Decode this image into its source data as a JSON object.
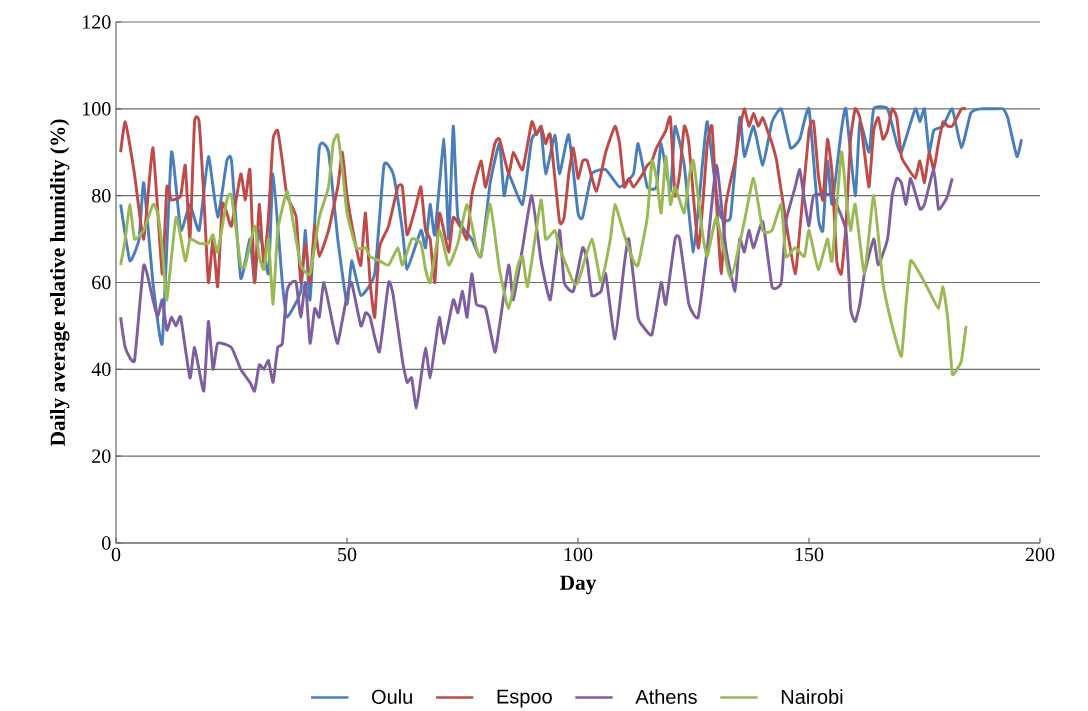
{
  "chart_data": {
    "type": "line",
    "xlabel": "Day",
    "ylabel": "Daily average relative humidity (%)",
    "xlim": [
      0,
      200
    ],
    "xticks": [
      0,
      50,
      100,
      150,
      200
    ],
    "ylim": [
      0,
      120
    ],
    "yticks": [
      0,
      20,
      40,
      60,
      80,
      100,
      120
    ],
    "grid": "y",
    "legend": "bottom",
    "marker": "none",
    "line_style": "solid",
    "series": [
      {
        "name": "Oulu",
        "color": "#4a7ebb",
        "x": [
          1,
          3,
          5,
          6,
          8,
          10,
          12,
          14,
          16,
          18,
          20,
          22,
          24,
          25,
          27,
          29,
          30,
          31,
          33,
          34,
          36,
          37,
          40,
          41,
          42,
          44,
          46,
          48,
          50,
          51,
          53,
          56,
          58,
          60,
          62,
          63,
          66,
          67,
          68,
          69,
          71,
          72,
          73,
          74,
          77,
          79,
          81,
          83,
          84,
          85,
          88,
          90,
          92,
          93,
          95,
          96,
          98,
          100,
          101,
          103,
          106,
          109,
          112,
          113,
          115,
          117,
          118,
          120,
          121,
          123,
          125,
          127,
          128,
          130,
          131,
          133,
          135,
          136,
          138,
          140,
          142,
          144,
          146,
          148,
          150,
          152,
          153,
          154,
          155,
          157,
          158,
          160,
          161,
          163,
          164,
          167,
          169,
          170,
          173,
          174,
          175,
          176,
          177,
          179,
          181,
          183,
          185,
          187,
          190,
          192,
          193,
          195,
          196
        ],
        "values": [
          78,
          65,
          70,
          83,
          60,
          46,
          90,
          72,
          78,
          72,
          89,
          75,
          88,
          88,
          61,
          70,
          60,
          72,
          62,
          85,
          60,
          52,
          58,
          72,
          56,
          91,
          90,
          70,
          55,
          65,
          57,
          62,
          87,
          85,
          72,
          63,
          72,
          68,
          78,
          71,
          93,
          70,
          96,
          75,
          70,
          66,
          83,
          92,
          80,
          85,
          78,
          93,
          95,
          85,
          94,
          85,
          94,
          76,
          75,
          85,
          86,
          82,
          85,
          92,
          82,
          82,
          92,
          81,
          96,
          87,
          67,
          88,
          97,
          80,
          75,
          75,
          98,
          89,
          96,
          87,
          97,
          100,
          91,
          93,
          100,
          75,
          72,
          88,
          78,
          95,
          100,
          80,
          97,
          90,
          100,
          100,
          92,
          90,
          100,
          97,
          100,
          90,
          95,
          96,
          100,
          91,
          99,
          100,
          100,
          100,
          98,
          89,
          93
        ]
      },
      {
        "name": "Espoo",
        "color": "#be4b48",
        "x": [
          1,
          2,
          4,
          6,
          8,
          10,
          11,
          12,
          14,
          15,
          16,
          17,
          18,
          19,
          20,
          21,
          22,
          23,
          24,
          25,
          27,
          28,
          29,
          30,
          31,
          32,
          33,
          34,
          35,
          36,
          37,
          39,
          40,
          41,
          42,
          43,
          44,
          46,
          48,
          49,
          50,
          52,
          53,
          54,
          55,
          56,
          57,
          59,
          61,
          62,
          63,
          65,
          66,
          67,
          68,
          69,
          70,
          72,
          73,
          75,
          76,
          77,
          79,
          80,
          82,
          83,
          85,
          86,
          88,
          90,
          91,
          92,
          93,
          94,
          96,
          97,
          98,
          99,
          100,
          101,
          102,
          104,
          106,
          108,
          109,
          110,
          111,
          112,
          114,
          115,
          116,
          117,
          119,
          120,
          121,
          122,
          123,
          124,
          126,
          127,
          128,
          129,
          130,
          131,
          132,
          134,
          135,
          136,
          137,
          138,
          139,
          140,
          141,
          142,
          143,
          145,
          147,
          148,
          150,
          151,
          152,
          153,
          154,
          155,
          156,
          157,
          158,
          159,
          160,
          161,
          162,
          163,
          164,
          165,
          166,
          167,
          168,
          169,
          170,
          171,
          173,
          174,
          175,
          176,
          177,
          178,
          179,
          180,
          181,
          182,
          183,
          184
        ],
        "values": [
          90,
          97,
          85,
          70,
          91,
          62,
          82,
          79,
          80,
          87,
          70,
          97,
          97,
          80,
          60,
          70,
          59,
          78,
          76,
          73,
          85,
          79,
          86,
          60,
          78,
          64,
          75,
          93,
          95,
          88,
          80,
          75,
          60,
          69,
          60,
          73,
          66,
          72,
          82,
          90,
          80,
          68,
          64,
          76,
          60,
          52,
          68,
          73,
          82,
          82,
          71,
          78,
          82,
          72,
          70,
          60,
          76,
          67,
          75,
          72,
          70,
          80,
          88,
          82,
          92,
          93,
          85,
          90,
          86,
          97,
          94,
          96,
          92,
          94,
          74,
          75,
          85,
          91,
          84,
          88,
          88,
          81,
          90,
          96,
          92,
          82,
          84,
          82,
          85,
          87,
          88,
          91,
          95,
          98,
          80,
          85,
          96,
          92,
          68,
          78,
          92,
          96,
          78,
          62,
          78,
          88,
          95,
          100,
          96,
          99,
          96,
          98,
          95,
          92,
          88,
          74,
          62,
          72,
          95,
          97,
          85,
          79,
          93,
          85,
          65,
          62,
          73,
          93,
          100,
          98,
          90,
          82,
          95,
          98,
          93,
          95,
          100,
          98,
          89,
          87,
          84,
          88,
          83,
          90,
          86,
          92,
          97,
          96,
          96,
          98,
          100,
          100
        ]
      },
      {
        "name": "Athens",
        "color": "#7d5fa0",
        "x": [
          1,
          2,
          4,
          6,
          8,
          9,
          10,
          11,
          12,
          13,
          14,
          16,
          17,
          19,
          20,
          21,
          22,
          25,
          27,
          29,
          30,
          31,
          32,
          33,
          34,
          35,
          36,
          37,
          38,
          39,
          40,
          41,
          42,
          43,
          44,
          45,
          47,
          48,
          50,
          51,
          53,
          54,
          55,
          57,
          59,
          60,
          62,
          63,
          64,
          65,
          66,
          67,
          68,
          69,
          70,
          71,
          73,
          74,
          75,
          76,
          77,
          78,
          80,
          82,
          83,
          85,
          86,
          88,
          90,
          92,
          94,
          96,
          97,
          99,
          101,
          102,
          103,
          105,
          106,
          108,
          110,
          111,
          113,
          114,
          116,
          118,
          119,
          121,
          122,
          124,
          126,
          128,
          130,
          132,
          134,
          135,
          136,
          137,
          138,
          140,
          142,
          144,
          145,
          147,
          148,
          149,
          150,
          151,
          155,
          158,
          159,
          160,
          161,
          162,
          164,
          165,
          167,
          168,
          169,
          170,
          171,
          172,
          174,
          175,
          177,
          178,
          179,
          180,
          181
        ],
        "values": [
          52,
          45,
          42,
          64,
          56,
          52,
          56,
          49,
          52,
          50,
          52,
          38,
          45,
          35,
          51,
          40,
          46,
          45,
          40,
          37,
          35,
          41,
          40,
          42,
          37,
          45,
          46,
          58,
          60,
          60,
          52,
          60,
          46,
          54,
          52,
          60,
          50,
          46,
          57,
          60,
          50,
          53,
          52,
          44,
          60,
          57,
          42,
          37,
          38,
          31,
          38,
          45,
          38,
          45,
          52,
          46,
          56,
          53,
          58,
          52,
          62,
          55,
          54,
          44,
          50,
          64,
          56,
          68,
          80,
          65,
          56,
          72,
          60,
          58,
          68,
          65,
          57,
          58,
          62,
          47,
          64,
          70,
          52,
          50,
          48,
          60,
          55,
          70,
          70,
          55,
          52,
          68,
          87,
          68,
          58,
          70,
          67,
          72,
          68,
          74,
          59,
          60,
          74,
          82,
          86,
          79,
          73,
          80,
          80,
          72,
          54,
          51,
          55,
          62,
          70,
          64,
          70,
          80,
          84,
          83,
          78,
          84,
          77,
          78,
          86,
          77,
          78,
          80,
          84
        ]
      },
      {
        "name": "Nairobi",
        "color": "#98b954",
        "x": [
          1,
          2,
          3,
          4,
          6,
          8,
          9,
          10,
          11,
          13,
          15,
          16,
          18,
          20,
          21,
          22,
          24,
          25,
          27,
          28,
          30,
          31,
          32,
          33,
          34,
          35,
          37,
          38,
          40,
          42,
          44,
          46,
          47,
          48,
          49,
          50,
          52,
          54,
          55,
          57,
          59,
          61,
          62,
          64,
          66,
          67,
          68,
          70,
          72,
          74,
          76,
          78,
          79,
          81,
          83,
          85,
          87,
          88,
          89,
          90,
          92,
          93,
          95,
          96,
          99,
          100,
          103,
          105,
          107,
          108,
          110,
          112,
          113,
          115,
          116,
          117,
          118,
          119,
          120,
          121,
          123,
          124,
          125,
          127,
          128,
          130,
          133,
          136,
          138,
          140,
          142,
          144,
          145,
          147,
          149,
          150,
          152,
          154,
          155,
          157,
          158,
          159,
          160,
          162,
          164,
          166,
          168,
          170,
          171,
          172,
          174,
          176,
          178,
          179,
          180,
          181,
          182,
          183,
          184
        ],
        "values": [
          64,
          70,
          78,
          70,
          72,
          78,
          76,
          68,
          56,
          75,
          65,
          70,
          69,
          69,
          71,
          67,
          79,
          80,
          64,
          64,
          73,
          66,
          63,
          70,
          55,
          72,
          81,
          76,
          64,
          62,
          75,
          82,
          92,
          94,
          86,
          76,
          68,
          68,
          66,
          65,
          64,
          68,
          64,
          70,
          69,
          63,
          60,
          72,
          64,
          69,
          78,
          68,
          66,
          78,
          63,
          54,
          64,
          66,
          59,
          65,
          79,
          70,
          72,
          68,
          60,
          60,
          70,
          60,
          70,
          78,
          71,
          65,
          64,
          75,
          88,
          84,
          76,
          89,
          78,
          82,
          76,
          84,
          88,
          71,
          66,
          75,
          61,
          74,
          84,
          72,
          72,
          78,
          66,
          68,
          66,
          72,
          63,
          70,
          65,
          90,
          80,
          72,
          78,
          62,
          80,
          60,
          50,
          43,
          55,
          65,
          62,
          58,
          54,
          59,
          52,
          39,
          40,
          42,
          50
        ]
      }
    ]
  }
}
